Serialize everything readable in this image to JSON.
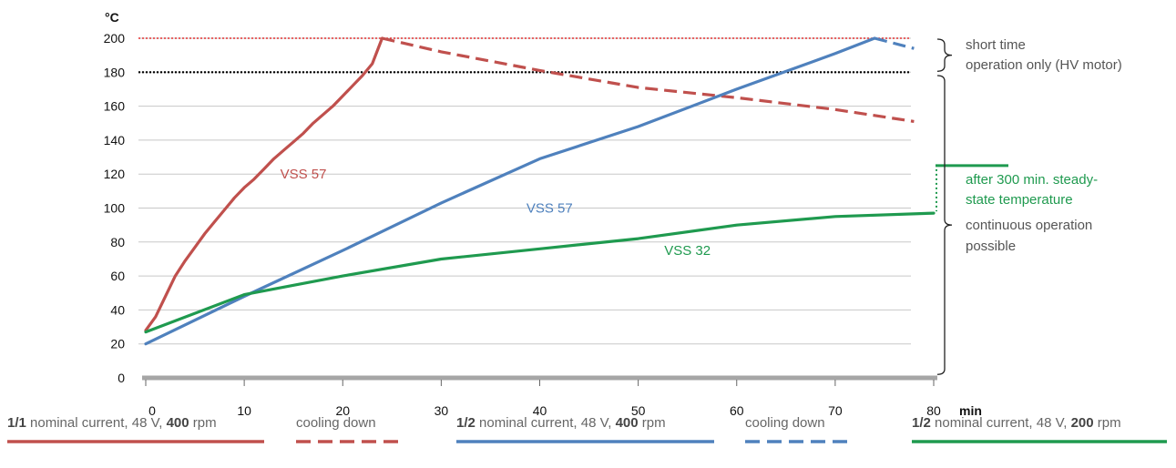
{
  "colors": {
    "red": "#c0504d",
    "blue": "#4f81bd",
    "green": "#1f9a4f",
    "grid": "#c8c8c8",
    "limit_red": "#e03030",
    "limit_black": "#000000"
  },
  "chart_data": {
    "type": "line",
    "x_unit": "min",
    "y_unit": "°C",
    "xlim": [
      0,
      80
    ],
    "ylim": [
      0,
      200
    ],
    "x_ticks": [
      0,
      10,
      20,
      30,
      40,
      50,
      60,
      70,
      80
    ],
    "y_ticks": [
      0,
      20,
      40,
      60,
      80,
      100,
      120,
      140,
      160,
      180,
      200
    ],
    "grid": "horizontal",
    "reference_lines": [
      {
        "y": 200,
        "style": "dotted",
        "color": "#e03030"
      },
      {
        "y": 180,
        "style": "dotted",
        "color": "#000000"
      }
    ],
    "series": [
      {
        "name": "VSS 57",
        "color": "#c0504d",
        "style": "solid",
        "x": [
          0,
          1,
          2,
          3,
          4,
          5,
          6,
          7,
          8,
          9,
          10,
          11,
          12,
          13,
          14,
          15,
          16,
          17,
          18,
          19,
          20,
          21,
          22,
          23,
          24
        ],
        "y": [
          28,
          36,
          48,
          60,
          69,
          77,
          85,
          92,
          99,
          106,
          112,
          117,
          123,
          129,
          134,
          139,
          144,
          150,
          155,
          160,
          166,
          172,
          178,
          185,
          200
        ]
      },
      {
        "color": "#c0504d",
        "style": "dashed",
        "x": [
          24,
          30,
          40,
          50,
          60,
          70,
          78
        ],
        "y": [
          200,
          192,
          181,
          171,
          165,
          158,
          151
        ]
      },
      {
        "name": "VSS 57",
        "color": "#4f81bd",
        "style": "solid",
        "x": [
          0,
          10,
          20,
          30,
          40,
          50,
          60,
          70,
          74
        ],
        "y": [
          20,
          48,
          75,
          103,
          129,
          148,
          170,
          191,
          200
        ]
      },
      {
        "color": "#4f81bd",
        "style": "dashed",
        "x": [
          74,
          78
        ],
        "y": [
          200,
          194
        ]
      },
      {
        "name": "VSS 32",
        "color": "#1f9a4f",
        "style": "solid",
        "x": [
          0,
          10,
          20,
          30,
          40,
          50,
          60,
          70,
          80
        ],
        "y": [
          27,
          49,
          60,
          70,
          76,
          82,
          90,
          95,
          97
        ]
      }
    ],
    "series_labels": [
      {
        "text": "VSS 57",
        "color": "#c0504d",
        "x": 16,
        "y": 120
      },
      {
        "text": "VSS 57",
        "color": "#4f81bd",
        "x": 41,
        "y": 100
      },
      {
        "text": "VSS 32",
        "color": "#1f9a4f",
        "x": 55,
        "y": 75
      }
    ],
    "steady_state_marker": {
      "value": 125,
      "color": "#1f9a4f"
    },
    "annotations": {
      "short_time": [
        "short time",
        "operation only (HV motor)"
      ],
      "steady_state": [
        "after 300 min. steady-",
        "state temperature"
      ],
      "continuous": [
        "continuous operation",
        "possible"
      ]
    },
    "legend": [
      {
        "prefix": "1/1",
        "middle": " nominal current, 48 V, ",
        "bold_value": "400",
        "suffix": " rpm",
        "color": "#c0504d",
        "dashed": false
      },
      {
        "text": "cooling down",
        "color": "#c0504d",
        "dashed": true
      },
      {
        "prefix": "1/2",
        "middle": " nominal current, 48 V, ",
        "bold_value": "400",
        "suffix": " rpm",
        "color": "#4f81bd",
        "dashed": false
      },
      {
        "text": "cooling down",
        "color": "#4f81bd",
        "dashed": true
      },
      {
        "prefix": "1/2",
        "middle": " nominal current, 48 V, ",
        "bold_value": "200",
        "suffix": " rpm",
        "color": "#1f9a4f",
        "dashed": false
      }
    ]
  }
}
